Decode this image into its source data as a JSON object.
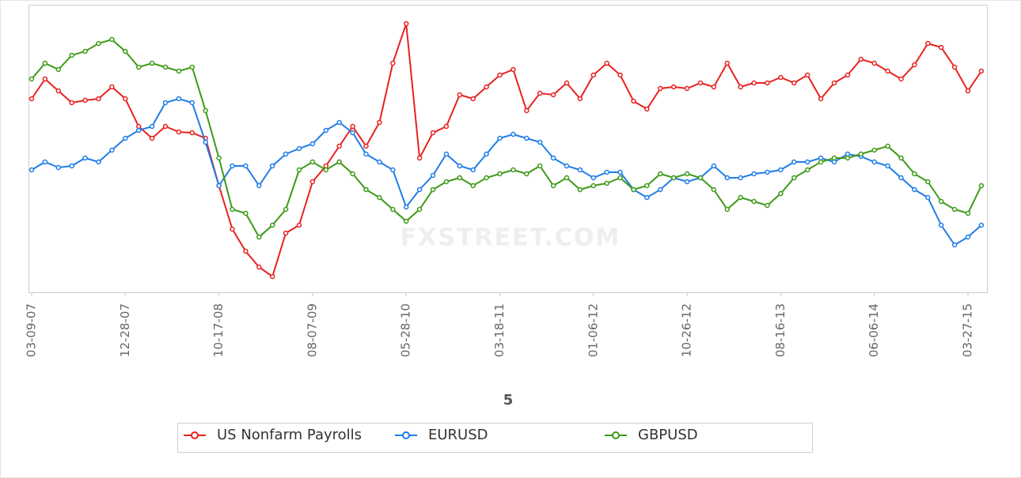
{
  "chart_data": {
    "type": "line",
    "x_label": "5",
    "watermark": "FXSTREET.COM",
    "categories": [
      "03-09-07",
      null,
      null,
      null,
      null,
      null,
      null,
      "12-28-07",
      null,
      null,
      null,
      null,
      null,
      null,
      "10-17-08",
      null,
      null,
      null,
      null,
      null,
      null,
      "08-07-09",
      null,
      null,
      null,
      null,
      null,
      null,
      "05-28-10",
      null,
      null,
      null,
      null,
      null,
      null,
      "03-18-11",
      null,
      null,
      null,
      null,
      null,
      null,
      "01-06-12",
      null,
      null,
      null,
      null,
      null,
      null,
      "10-26-12",
      null,
      null,
      null,
      null,
      null,
      null,
      "08-16-13",
      null,
      null,
      null,
      null,
      null,
      null,
      "06-06-14",
      null,
      null,
      null,
      null,
      null,
      null,
      "03-27-15",
      null
    ],
    "ylim": [
      0,
      364
    ],
    "series": [
      {
        "name": "US Nonfarm Payrolls",
        "color": "#e8211f",
        "values": [
          245,
          270,
          255,
          240,
          243,
          245,
          260,
          245,
          210,
          195,
          210,
          203,
          202,
          195,
          135,
          80,
          52,
          32,
          20,
          75,
          85,
          140,
          160,
          185,
          210,
          185,
          215,
          290,
          340,
          170,
          202,
          210,
          250,
          245,
          260,
          275,
          282,
          230,
          252,
          250,
          265,
          245,
          275,
          290,
          275,
          242,
          232,
          258,
          260,
          258,
          265,
          260,
          290,
          260,
          265,
          265,
          272,
          265,
          275,
          245,
          265,
          275,
          295,
          290,
          280,
          270,
          288,
          315,
          310,
          285,
          255,
          280
        ]
      },
      {
        "name": "EURUSD",
        "color": "#1f7de8",
        "values": [
          155,
          165,
          158,
          160,
          170,
          165,
          180,
          195,
          205,
          210,
          240,
          245,
          240,
          190,
          135,
          160,
          160,
          135,
          160,
          175,
          182,
          188,
          205,
          215,
          202,
          175,
          165,
          155,
          108,
          130,
          148,
          175,
          160,
          155,
          175,
          195,
          200,
          195,
          190,
          170,
          160,
          155,
          145,
          152,
          152,
          130,
          120,
          130,
          145,
          140,
          145,
          160,
          145,
          145,
          150,
          152,
          155,
          165,
          165,
          170,
          165,
          175,
          172,
          165,
          160,
          145,
          130,
          120,
          85,
          60,
          70,
          85
        ]
      },
      {
        "name": "GBPUSD",
        "color": "#3d9a17",
        "values": [
          270,
          290,
          282,
          300,
          305,
          315,
          320,
          305,
          285,
          290,
          285,
          280,
          285,
          230,
          170,
          105,
          100,
          70,
          85,
          105,
          155,
          165,
          155,
          165,
          150,
          130,
          120,
          105,
          90,
          105,
          130,
          140,
          145,
          135,
          145,
          150,
          155,
          150,
          160,
          135,
          145,
          130,
          135,
          138,
          145,
          130,
          135,
          150,
          145,
          150,
          145,
          130,
          105,
          120,
          115,
          110,
          125,
          145,
          155,
          165,
          170,
          170,
          175,
          180,
          185,
          170,
          150,
          140,
          115,
          105,
          100,
          135
        ]
      }
    ]
  }
}
